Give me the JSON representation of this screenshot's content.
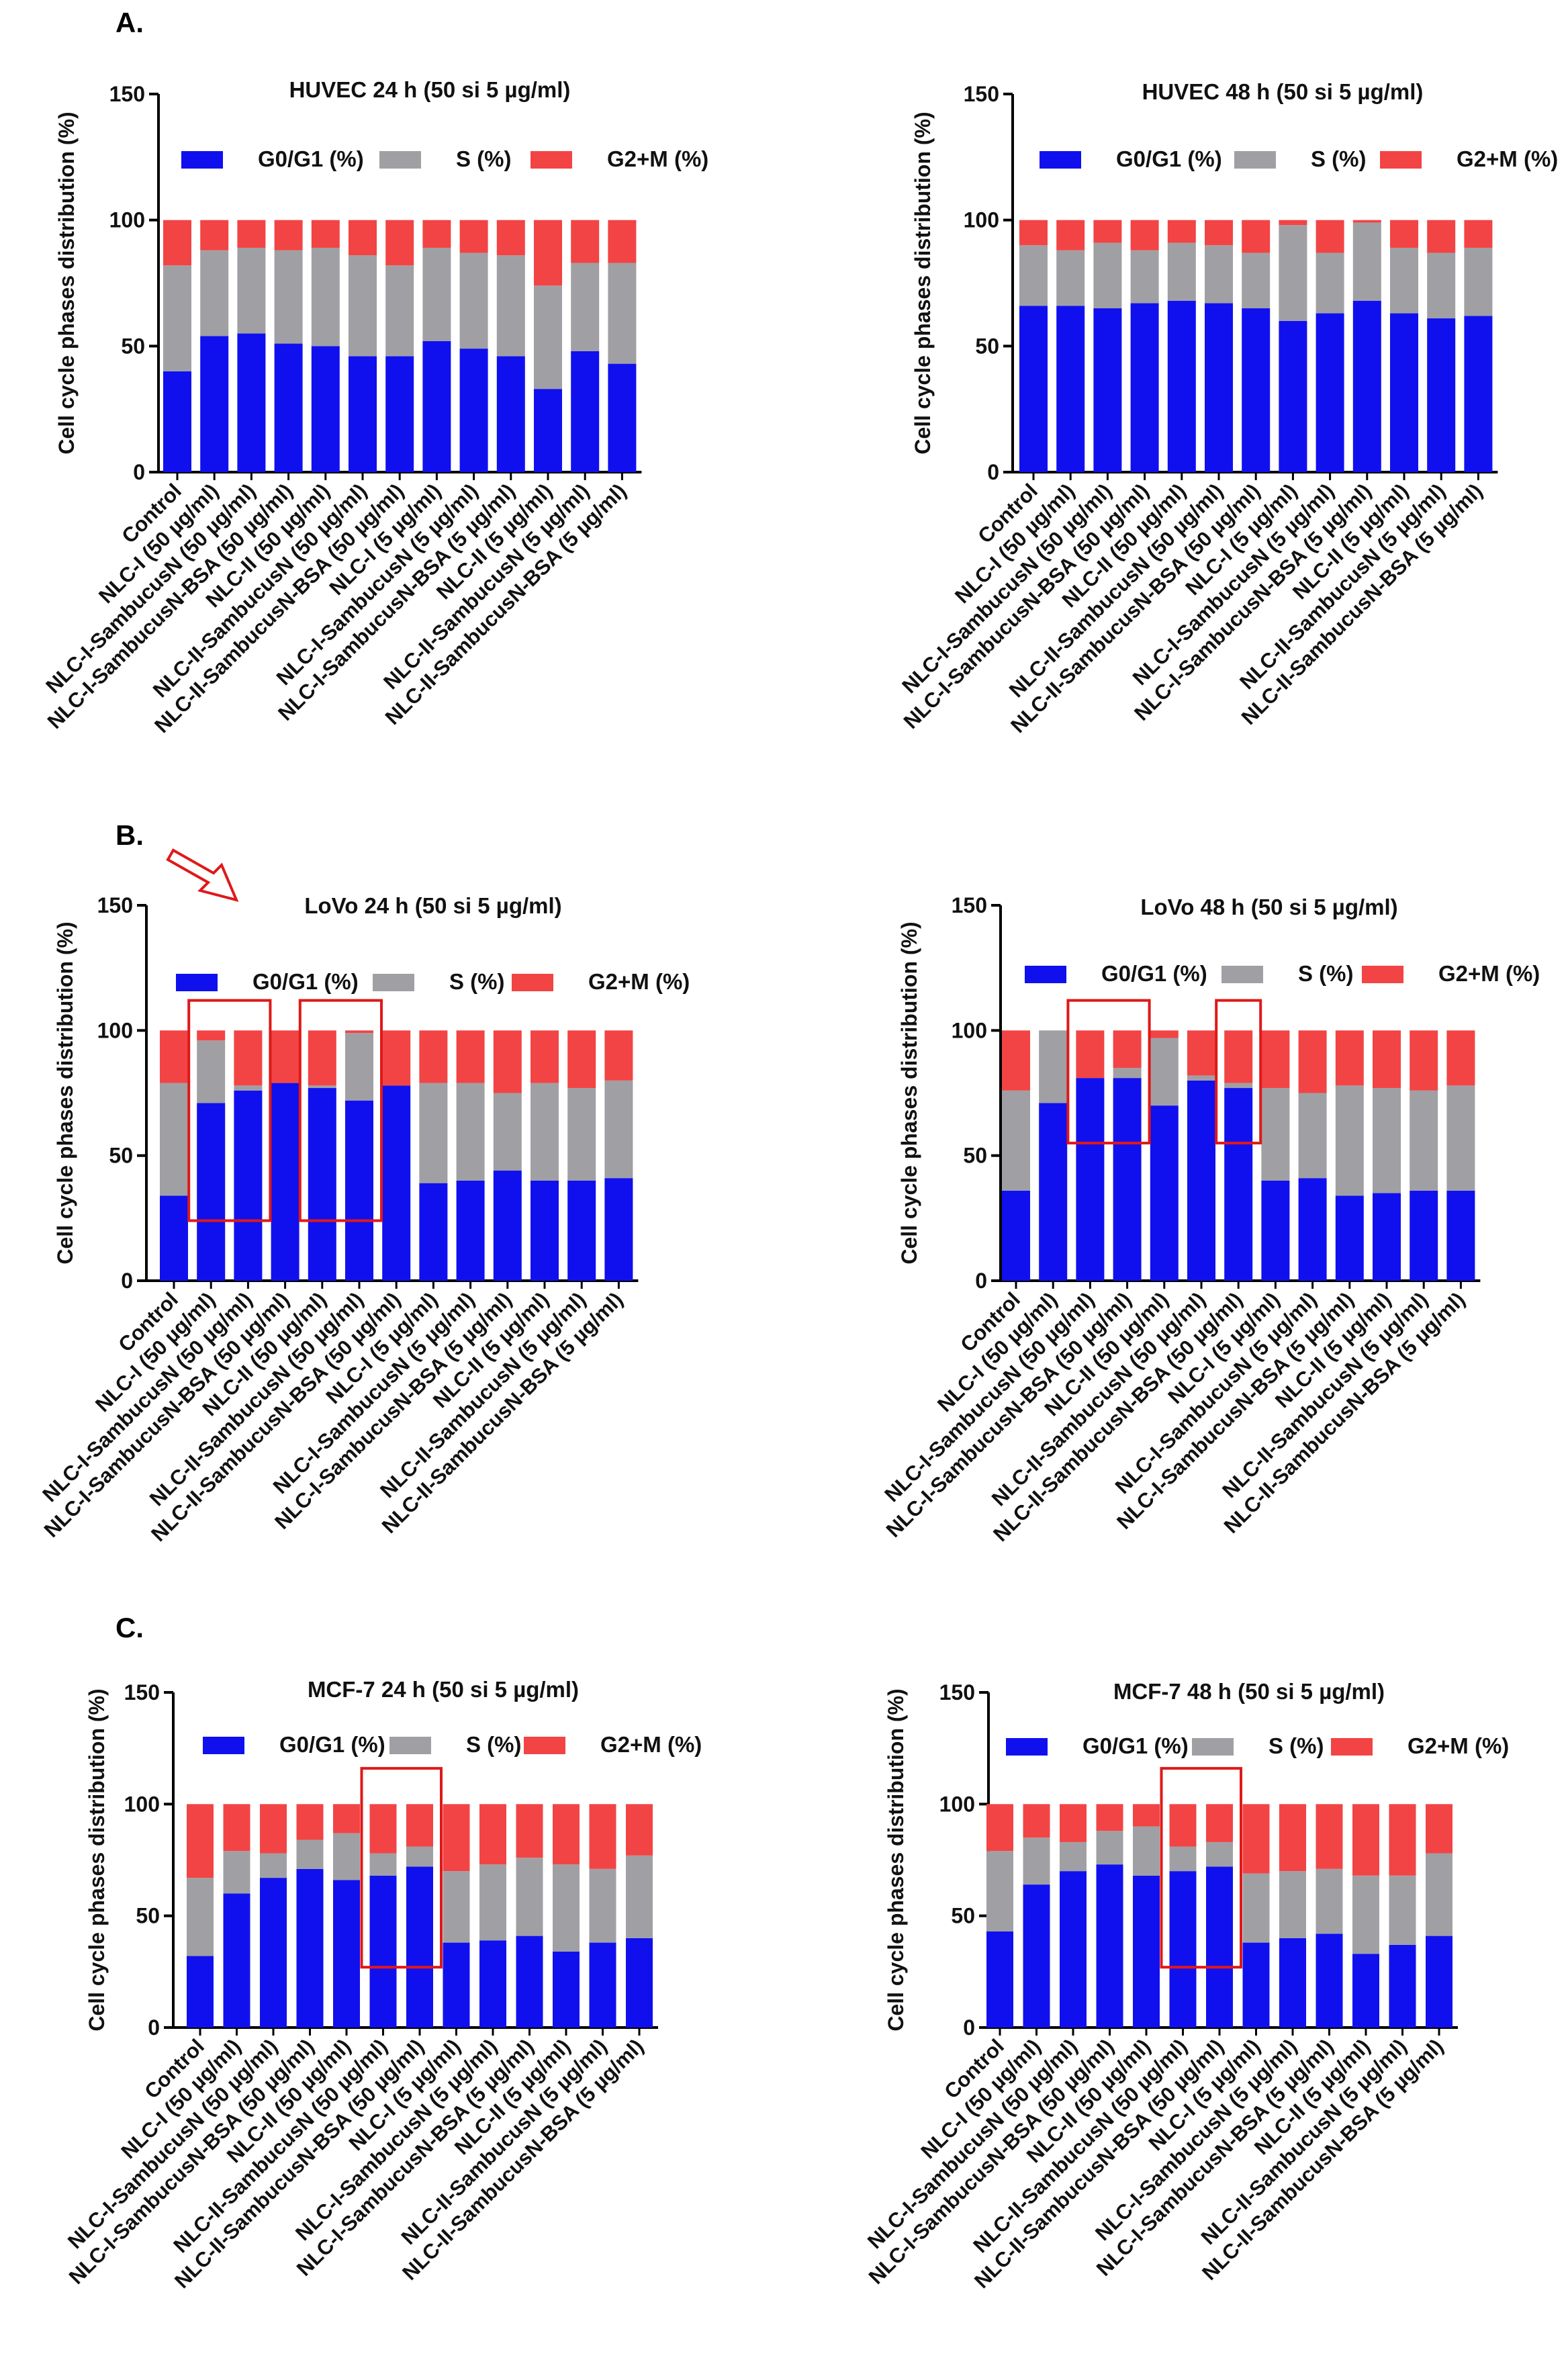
{
  "figure": {
    "panel_labels": [
      "A.",
      "B.",
      "C."
    ]
  },
  "colors": {
    "g0g1": "#1010ee",
    "s": "#a0a0a4",
    "g2m": "#f24444",
    "highlight": "#e01818",
    "axis": "#000000"
  },
  "chart_data": [
    {
      "type": "bar",
      "stacked": true,
      "title": "HUVEC 24 h (50 si 5 µg/ml)",
      "ylabel": "Cell cycle phases distribution (%)",
      "ylim": [
        0,
        150
      ],
      "yticks": [
        0,
        50,
        100,
        150
      ],
      "categories": [
        "Control",
        "NLC-I (50 µg/ml)",
        "NLC-I-SambucusN (50 µg/ml)",
        "NLC-I-SambucusN-BSA (50 µg/ml)",
        "NLC-II (50 µg/ml)",
        "NLC-II-SambucusN (50 µg/ml)",
        "NLC-II-SambucusN-BSA (50 µg/ml)",
        "NLC-I (5 µg/ml)",
        "NLC-I-SambucusN (5 µg/ml)",
        "NLC-I-SambucusN-BSA (5 µg/ml)",
        "NLC-II (5 µg/ml)",
        "NLC-II-SambucusN (5 µg/ml)",
        "NLC-II-SambucusN-BSA (5 µg/ml)"
      ],
      "series": [
        {
          "name": "G0/G1 (%)",
          "values": [
            40,
            54,
            55,
            51,
            50,
            46,
            46,
            52,
            49,
            46,
            33,
            48,
            43
          ]
        },
        {
          "name": "S (%)",
          "values": [
            42,
            34,
            34,
            37,
            39,
            40,
            36,
            37,
            38,
            40,
            41,
            35,
            40
          ]
        },
        {
          "name": "G2+M (%)",
          "values": [
            18,
            12,
            11,
            12,
            11,
            14,
            18,
            11,
            13,
            14,
            26,
            17,
            17
          ]
        }
      ]
    },
    {
      "type": "bar",
      "stacked": true,
      "title": "HUVEC 48 h (50 si 5 µg/ml)",
      "ylabel": "Cell cycle phases distribution (%)",
      "ylim": [
        0,
        150
      ],
      "yticks": [
        0,
        50,
        100,
        150
      ],
      "categories": [
        "Control",
        "NLC-I (50 µg/ml)",
        "NLC-I-SambucusN (50 µg/ml)",
        "NLC-I-SambucusN-BSA (50 µg/ml)",
        "NLC-II (50 µg/ml)",
        "NLC-II-SambucusN (50 µg/ml)",
        "NLC-II-SambucusN-BSA (50 µg/ml)",
        "NLC-I (5 µg/ml)",
        "NLC-I-SambucusN (5 µg/ml)",
        "NLC-I-SambucusN-BSA (5 µg/ml)",
        "NLC-II (5 µg/ml)",
        "NLC-II-SambucusN (5 µg/ml)",
        "NLC-II-SambucusN-BSA (5 µg/ml)"
      ],
      "series": [
        {
          "name": "G0/G1 (%)",
          "values": [
            66,
            66,
            65,
            67,
            68,
            67,
            65,
            60,
            63,
            68,
            63,
            61,
            62
          ]
        },
        {
          "name": "S (%)",
          "values": [
            24,
            22,
            26,
            21,
            23,
            23,
            22,
            38,
            24,
            31,
            26,
            26,
            27
          ]
        },
        {
          "name": "G2+M (%)",
          "values": [
            10,
            12,
            9,
            12,
            9,
            10,
            13,
            2,
            13,
            1,
            11,
            13,
            11
          ]
        }
      ]
    },
    {
      "type": "bar",
      "stacked": true,
      "title": "LoVo 24 h (50 si 5 µg/ml)",
      "ylabel": "Cell cycle phases distribution (%)",
      "ylim": [
        0,
        150
      ],
      "yticks": [
        0,
        50,
        100,
        150
      ],
      "categories": [
        "Control",
        "NLC-I (50 µg/ml)",
        "NLC-I-SambucusN (50 µg/ml)",
        "NLC-I-SambucusN-BSA (50 µg/ml)",
        "NLC-II (50 µg/ml)",
        "NLC-II-SambucusN (50 µg/ml)",
        "NLC-II-SambucusN-BSA (50 µg/ml)",
        "NLC-I (5 µg/ml)",
        "NLC-I-SambucusN (5 µg/ml)",
        "NLC-I-SambucusN-BSA (5 µg/ml)",
        "NLC-II (5 µg/ml)",
        "NLC-II-SambucusN (5 µg/ml)",
        "NLC-II-SambucusN-BSA (5 µg/ml)"
      ],
      "series": [
        {
          "name": "G0/G1 (%)",
          "values": [
            34,
            71,
            76,
            79,
            77,
            72,
            78,
            39,
            40,
            44,
            40,
            40,
            41
          ]
        },
        {
          "name": "S (%)",
          "values": [
            45,
            25,
            2,
            0,
            1,
            27,
            0,
            40,
            39,
            31,
            39,
            37,
            39
          ]
        },
        {
          "name": "G2+M (%)",
          "values": [
            21,
            4,
            22,
            21,
            22,
            1,
            22,
            21,
            21,
            25,
            21,
            23,
            20
          ]
        }
      ],
      "highlight_groups": [
        [
          1,
          2
        ],
        [
          4,
          5
        ]
      ]
    },
    {
      "type": "bar",
      "stacked": true,
      "title": "LoVo 48 h (50 si 5 µg/ml)",
      "ylabel": "Cell cycle phases distribution (%)",
      "ylim": [
        0,
        150
      ],
      "yticks": [
        0,
        50,
        100,
        150
      ],
      "categories": [
        "Control",
        "NLC-I (50 µg/ml)",
        "NLC-I-SambucusN (50 µg/ml)",
        "NLC-I-SambucusN-BSA (50 µg/ml)",
        "NLC-II (50 µg/ml)",
        "NLC-II-SambucusN (50 µg/ml)",
        "NLC-II-SambucusN-BSA (50 µg/ml)",
        "NLC-I (5 µg/ml)",
        "NLC-I-SambucusN (5 µg/ml)",
        "NLC-I-SambucusN-BSA (5 µg/ml)",
        "NLC-II (5 µg/ml)",
        "NLC-II-SambucusN (5 µg/ml)",
        "NLC-II-SambucusN-BSA (5 µg/ml)"
      ],
      "series": [
        {
          "name": "G0/G1 (%)",
          "values": [
            36,
            71,
            81,
            81,
            70,
            80,
            77,
            40,
            41,
            34,
            35,
            36,
            36
          ]
        },
        {
          "name": "S (%)",
          "values": [
            40,
            29,
            0,
            4,
            27,
            2,
            2,
            37,
            34,
            44,
            42,
            40,
            42
          ]
        },
        {
          "name": "G2+M (%)",
          "values": [
            24,
            0,
            19,
            15,
            3,
            18,
            21,
            23,
            25,
            22,
            23,
            24,
            22
          ]
        }
      ],
      "highlight_groups": [
        [
          2,
          3
        ],
        [
          6,
          6
        ]
      ]
    },
    {
      "type": "bar",
      "stacked": true,
      "title": "MCF-7 24 h (50 si 5 µg/ml)",
      "ylabel": "Cell cycle phases distribution (%)",
      "ylim": [
        0,
        150
      ],
      "yticks": [
        0,
        50,
        100,
        150
      ],
      "categories": [
        "Control",
        "NLC-I (50 µg/ml)",
        "NLC-I-SambucusN (50 µg/ml)",
        "NLC-I-SambucusN-BSA (50 µg/ml)",
        "NLC-II (50 µg/ml)",
        "NLC-II-SambucusN (50 µg/ml)",
        "NLC-II-SambucusN-BSA (50 µg/ml)",
        "NLC-I (5 µg/ml)",
        "NLC-I-SambucusN (5 µg/ml)",
        "NLC-I-SambucusN-BSA (5 µg/ml)",
        "NLC-II (5 µg/ml)",
        "NLC-II-SambucusN (5 µg/ml)",
        "NLC-II-SambucusN-BSA (5 µg/ml)"
      ],
      "series": [
        {
          "name": "G0/G1 (%)",
          "values": [
            32,
            60,
            67,
            71,
            66,
            68,
            72,
            38,
            39,
            41,
            34,
            38,
            40
          ]
        },
        {
          "name": "S (%)",
          "values": [
            35,
            19,
            11,
            13,
            21,
            10,
            9,
            32,
            34,
            35,
            39,
            33,
            37
          ]
        },
        {
          "name": "G2+M (%)",
          "values": [
            33,
            21,
            22,
            16,
            13,
            22,
            19,
            30,
            27,
            24,
            27,
            29,
            23
          ]
        }
      ],
      "highlight_groups": [
        [
          5,
          6
        ]
      ]
    },
    {
      "type": "bar",
      "stacked": true,
      "title": "MCF-7 48 h (50 si 5 µg/ml)",
      "ylabel": "Cell cycle phases distribution (%)",
      "ylim": [
        0,
        150
      ],
      "yticks": [
        0,
        50,
        100,
        150
      ],
      "categories": [
        "Control",
        "NLC-I (50 µg/ml)",
        "NLC-I-SambucusN (50 µg/ml)",
        "NLC-I-SambucusN-BSA (50 µg/ml)",
        "NLC-II (50 µg/ml)",
        "NLC-II-SambucusN (50 µg/ml)",
        "NLC-II-SambucusN-BSA (50 µg/ml)",
        "NLC-I (5 µg/ml)",
        "NLC-I-SambucusN (5 µg/ml)",
        "NLC-I-SambucusN-BSA (5 µg/ml)",
        "NLC-II (5 µg/ml)",
        "NLC-II-SambucusN (5 µg/ml)",
        "NLC-II-SambucusN-BSA (5 µg/ml)"
      ],
      "series": [
        {
          "name": "G0/G1 (%)",
          "values": [
            43,
            64,
            70,
            73,
            68,
            70,
            72,
            38,
            40,
            42,
            33,
            37,
            41
          ]
        },
        {
          "name": "S (%)",
          "values": [
            36,
            21,
            13,
            15,
            22,
            11,
            11,
            31,
            30,
            29,
            35,
            31,
            37
          ]
        },
        {
          "name": "G2+M (%)",
          "values": [
            21,
            15,
            17,
            12,
            10,
            19,
            17,
            31,
            30,
            29,
            32,
            32,
            22
          ]
        }
      ],
      "highlight_groups": [
        [
          5,
          6
        ]
      ]
    }
  ]
}
